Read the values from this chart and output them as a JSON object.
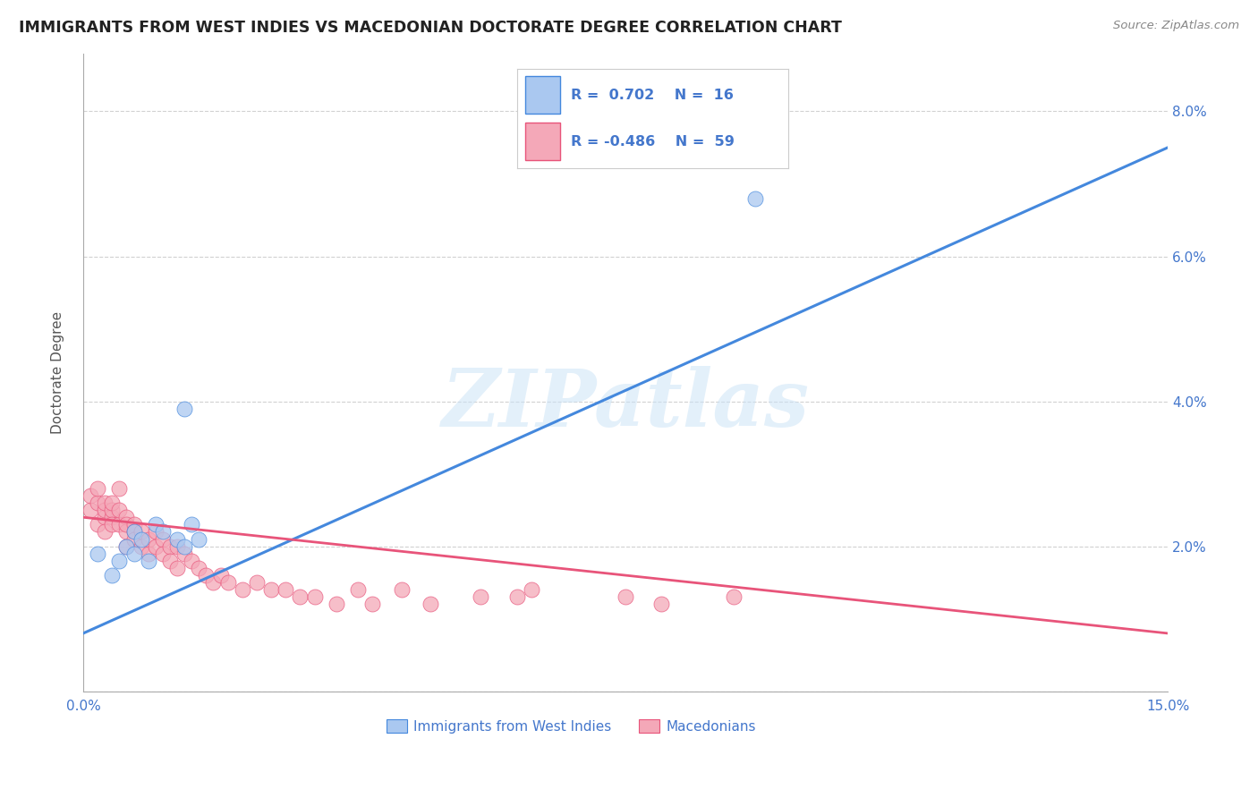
{
  "title": "IMMIGRANTS FROM WEST INDIES VS MACEDONIAN DOCTORATE DEGREE CORRELATION CHART",
  "source": "Source: ZipAtlas.com",
  "ylabel": "Doctorate Degree",
  "xlim": [
    0.0,
    0.15
  ],
  "ylim": [
    0.0,
    0.088
  ],
  "xticks": [
    0.0,
    0.03,
    0.06,
    0.09,
    0.12,
    0.15
  ],
  "yticks": [
    0.0,
    0.02,
    0.04,
    0.06,
    0.08
  ],
  "ytick_labels": [
    "",
    "2.0%",
    "4.0%",
    "6.0%",
    "8.0%"
  ],
  "blue_R": 0.702,
  "blue_N": 16,
  "pink_R": -0.486,
  "pink_N": 59,
  "blue_color": "#aac8f0",
  "pink_color": "#f4a8b8",
  "blue_line_color": "#4488dd",
  "pink_line_color": "#e8547a",
  "legend_text_color": "#4477cc",
  "watermark": "ZIPatlas",
  "blue_line_x0": 0.0,
  "blue_line_y0": 0.008,
  "blue_line_x1": 0.15,
  "blue_line_y1": 0.075,
  "pink_line_x0": 0.0,
  "pink_line_y0": 0.024,
  "pink_line_x1": 0.15,
  "pink_line_y1": 0.008,
  "blue_scatter_x": [
    0.002,
    0.004,
    0.005,
    0.006,
    0.007,
    0.007,
    0.008,
    0.009,
    0.01,
    0.011,
    0.013,
    0.014,
    0.015,
    0.016,
    0.014,
    0.093
  ],
  "blue_scatter_y": [
    0.019,
    0.016,
    0.018,
    0.02,
    0.022,
    0.019,
    0.021,
    0.018,
    0.023,
    0.022,
    0.021,
    0.02,
    0.023,
    0.021,
    0.039,
    0.068
  ],
  "pink_scatter_x": [
    0.001,
    0.001,
    0.002,
    0.002,
    0.002,
    0.003,
    0.003,
    0.003,
    0.003,
    0.004,
    0.004,
    0.004,
    0.004,
    0.005,
    0.005,
    0.005,
    0.006,
    0.006,
    0.006,
    0.006,
    0.007,
    0.007,
    0.007,
    0.008,
    0.008,
    0.009,
    0.009,
    0.01,
    0.01,
    0.011,
    0.011,
    0.012,
    0.012,
    0.013,
    0.013,
    0.014,
    0.015,
    0.016,
    0.017,
    0.018,
    0.019,
    0.02,
    0.022,
    0.024,
    0.026,
    0.028,
    0.03,
    0.032,
    0.035,
    0.038,
    0.04,
    0.044,
    0.048,
    0.055,
    0.06,
    0.062,
    0.075,
    0.08,
    0.09
  ],
  "pink_scatter_y": [
    0.025,
    0.027,
    0.023,
    0.026,
    0.028,
    0.024,
    0.025,
    0.026,
    0.022,
    0.024,
    0.025,
    0.023,
    0.026,
    0.023,
    0.025,
    0.028,
    0.024,
    0.022,
    0.023,
    0.02,
    0.023,
    0.022,
    0.021,
    0.022,
    0.02,
    0.021,
    0.019,
    0.022,
    0.02,
    0.021,
    0.019,
    0.02,
    0.018,
    0.02,
    0.017,
    0.019,
    0.018,
    0.017,
    0.016,
    0.015,
    0.016,
    0.015,
    0.014,
    0.015,
    0.014,
    0.014,
    0.013,
    0.013,
    0.012,
    0.014,
    0.012,
    0.014,
    0.012,
    0.013,
    0.013,
    0.014,
    0.013,
    0.012,
    0.013
  ]
}
